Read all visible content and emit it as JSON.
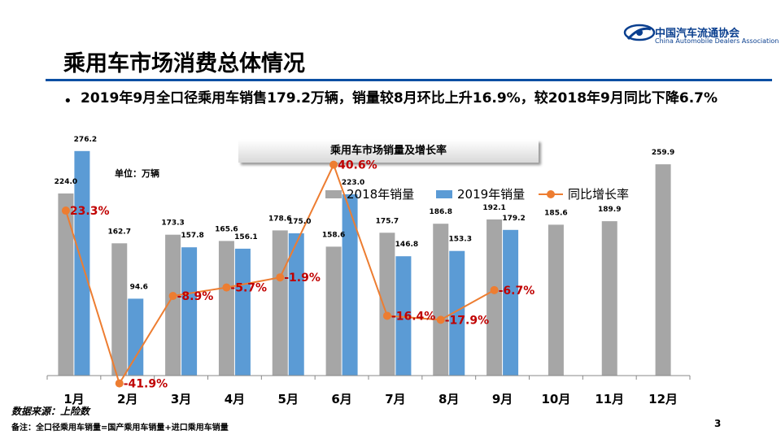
{
  "header": {
    "logo_cn": "中国汽车流通协会",
    "logo_en": "China Automobile Dealers Association",
    "title": "乘用车市场消费总体情况"
  },
  "bullet": "2019年9月全口径乘用车销售179.2万辆，销量较8月环比上升16.9%，较2018年9月同比下降6.7%",
  "unit_label": "单位：万辆",
  "source": "数据来源：上险数",
  "note": "备注：全口径乘用车销量=国产乘用车销量+进口乘用车销量",
  "page_number": "3",
  "colors": {
    "series_2018": "#a6a6a6",
    "series_2019": "#5b9bd5",
    "growth_line": "#ed7d31",
    "growth_label": "#c00000",
    "title_bar": "#0b4fa3"
  },
  "chart_data": {
    "type": "bar",
    "title": "乘用车市场销量及增长率",
    "categories": [
      "1月",
      "2月",
      "3月",
      "4月",
      "5月",
      "6月",
      "7月",
      "8月",
      "9月",
      "10月",
      "11月",
      "12月"
    ],
    "series": [
      {
        "name": "2018年销量",
        "type": "bar",
        "values": [
          224.0,
          162.7,
          173.3,
          165.6,
          178.6,
          158.6,
          175.7,
          186.8,
          192.1,
          185.6,
          189.9,
          259.9
        ],
        "labels": [
          "224.0",
          "162.7",
          "173.3",
          "165.6",
          "178.6",
          "158.6",
          "175.7",
          "186.8",
          "192.1",
          "185.6",
          "189.9",
          "259.9"
        ]
      },
      {
        "name": "2019年销量",
        "type": "bar",
        "values": [
          276.2,
          94.6,
          157.8,
          156.1,
          175.0,
          223.0,
          146.8,
          153.3,
          179.2,
          null,
          null,
          null
        ],
        "labels": [
          "276.2",
          "94.6",
          "157.8",
          "156.1",
          "175.0",
          "223.0",
          "146.8",
          "153.3",
          "179.2",
          null,
          null,
          null
        ]
      },
      {
        "name": "同比增长率",
        "type": "line",
        "values": [
          23.3,
          -41.9,
          -8.9,
          -5.7,
          -1.9,
          40.6,
          -16.4,
          -17.9,
          -6.7,
          null,
          null,
          null
        ],
        "labels": [
          "23.3%",
          "-41.9%",
          "-8.9%",
          "-5.7%",
          "-1.9%",
          "40.6%",
          "-16.4%",
          "-17.9%",
          "-6.7%",
          null,
          null,
          null
        ]
      }
    ],
    "ylim": [
      0,
      300
    ],
    "y2lim": [
      -50,
      50
    ],
    "grid": false,
    "legend": "top-right"
  }
}
